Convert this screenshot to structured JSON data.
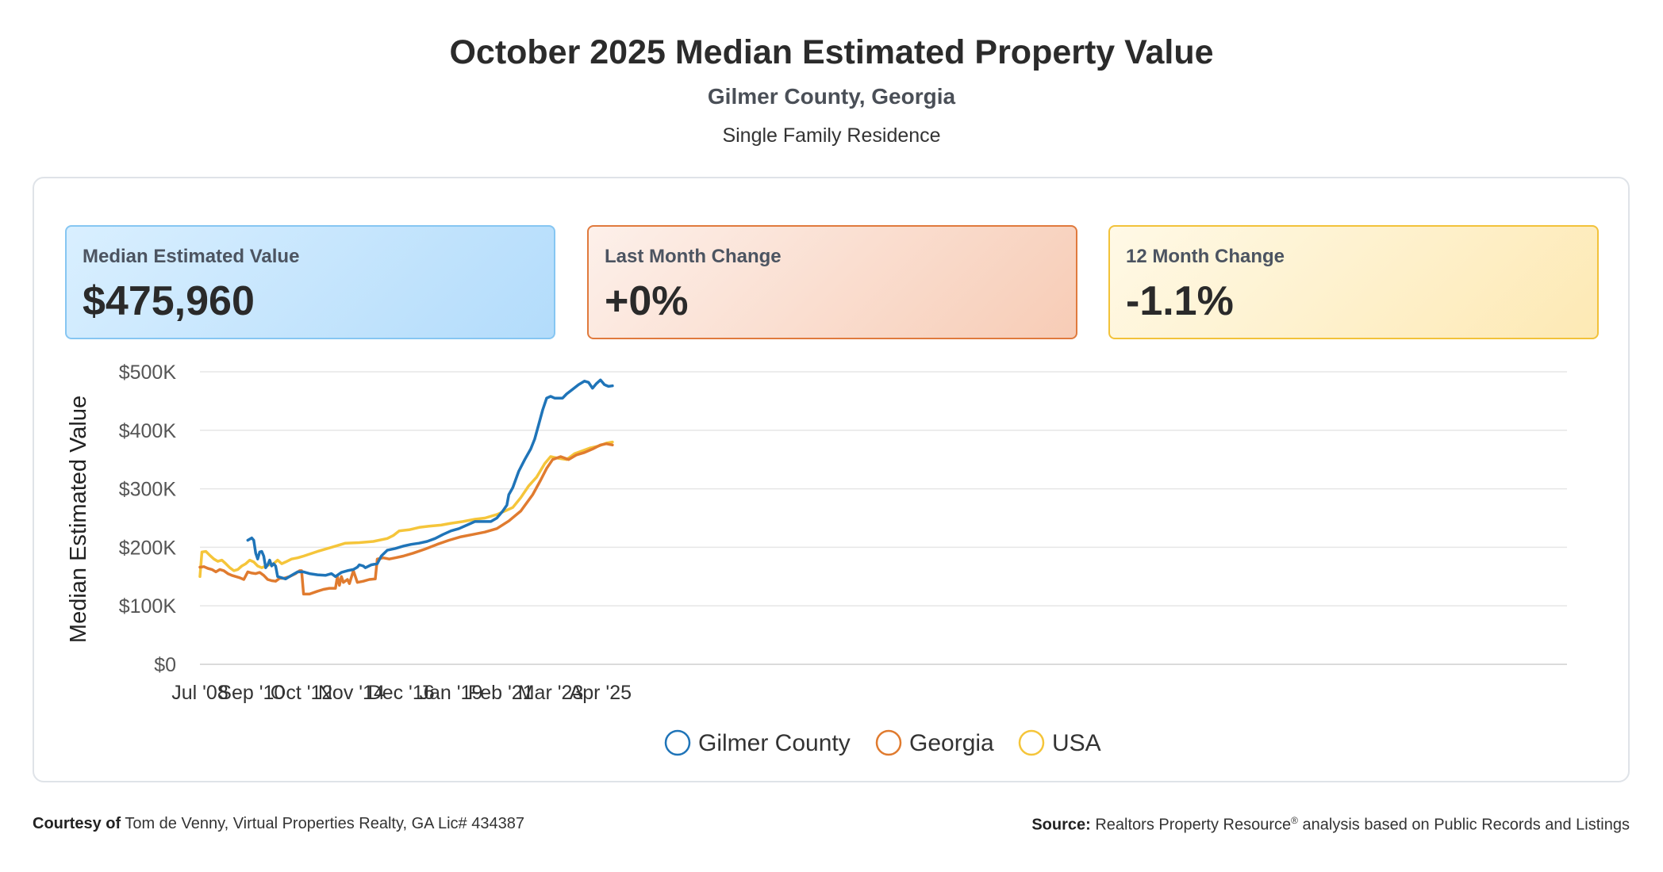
{
  "header": {
    "title": "October 2025 Median Estimated Property Value",
    "subtitle": "Gilmer County, Georgia",
    "property_type": "Single Family Residence"
  },
  "cards": [
    {
      "label": "Median Estimated Value",
      "value": "$475,960"
    },
    {
      "label": "Last Month Change",
      "value": "+0%"
    },
    {
      "label": "12 Month Change",
      "value": "-1.1%"
    }
  ],
  "footer": {
    "courtesy_label": "Courtesy of",
    "courtesy_text": "Tom de Venny, Virtual Properties Realty, GA Lic# 434387",
    "source_label": "Source:",
    "source_text_a": "Realtors Property Resource",
    "source_mark": "®",
    "source_text_b": "analysis based on Public Records and Listings"
  },
  "chart_data": {
    "type": "line",
    "ylabel": "Median Estimated Value",
    "xlabel": "",
    "ylim": [
      0,
      500000
    ],
    "xlim": [
      "2008-07",
      "2025-10"
    ],
    "yticks": [
      0,
      100000,
      200000,
      300000,
      400000,
      500000
    ],
    "ytick_labels": [
      "$0",
      "$100K",
      "$200K",
      "$300K",
      "$400K",
      "$500K"
    ],
    "xticks": [
      "2008-07",
      "2010-09",
      "2012-10",
      "2014-11",
      "2016-12",
      "2019-01",
      "2021-02",
      "2023-03",
      "2025-04"
    ],
    "xtick_labels": [
      "Jul '08",
      "Sep '10",
      "Oct '12",
      "Nov '14",
      "Dec '16",
      "Jan '19",
      "Feb '21",
      "Mar '23",
      "Apr '25"
    ],
    "grid": true,
    "legend": "bottom-center",
    "series": [
      {
        "name": "Gilmer County",
        "color": "#1f74b8",
        "points": [
          [
            "2010-07",
            212000
          ],
          [
            "2010-09",
            216000
          ],
          [
            "2010-10",
            212000
          ],
          [
            "2010-11",
            190000
          ],
          [
            "2010-12",
            180000
          ],
          [
            "2011-01",
            192000
          ],
          [
            "2011-02",
            193000
          ],
          [
            "2011-03",
            185000
          ],
          [
            "2011-04",
            165000
          ],
          [
            "2011-05",
            170000
          ],
          [
            "2011-06",
            178000
          ],
          [
            "2011-07",
            168000
          ],
          [
            "2011-08",
            172000
          ],
          [
            "2011-09",
            168000
          ],
          [
            "2011-10",
            150000
          ],
          [
            "2011-12",
            148000
          ],
          [
            "2012-02",
            146000
          ],
          [
            "2012-05",
            152000
          ],
          [
            "2012-08",
            158000
          ],
          [
            "2012-11",
            158000
          ],
          [
            "2013-02",
            155000
          ],
          [
            "2013-06",
            153000
          ],
          [
            "2013-10",
            152000
          ],
          [
            "2014-01",
            155000
          ],
          [
            "2014-03",
            150000
          ],
          [
            "2014-06",
            157000
          ],
          [
            "2014-09",
            160000
          ],
          [
            "2014-12",
            162000
          ],
          [
            "2015-02",
            166000
          ],
          [
            "2015-03",
            170000
          ],
          [
            "2015-05",
            168000
          ],
          [
            "2015-06",
            165000
          ],
          [
            "2015-09",
            170000
          ],
          [
            "2015-12",
            172000
          ],
          [
            "2016-02",
            185000
          ],
          [
            "2016-05",
            195000
          ],
          [
            "2016-09",
            198000
          ],
          [
            "2017-01",
            202000
          ],
          [
            "2017-05",
            205000
          ],
          [
            "2017-09",
            207000
          ],
          [
            "2018-01",
            210000
          ],
          [
            "2018-05",
            215000
          ],
          [
            "2018-09",
            222000
          ],
          [
            "2019-01",
            228000
          ],
          [
            "2019-05",
            232000
          ],
          [
            "2019-09",
            238000
          ],
          [
            "2020-01",
            244000
          ],
          [
            "2020-05",
            244000
          ],
          [
            "2020-09",
            244000
          ],
          [
            "2020-12",
            250000
          ],
          [
            "2021-03",
            262000
          ],
          [
            "2021-05",
            272000
          ],
          [
            "2021-06",
            290000
          ],
          [
            "2021-08",
            302000
          ],
          [
            "2021-11",
            330000
          ],
          [
            "2022-02",
            350000
          ],
          [
            "2022-05",
            368000
          ],
          [
            "2022-07",
            385000
          ],
          [
            "2022-09",
            410000
          ],
          [
            "2022-11",
            435000
          ],
          [
            "2023-01",
            455000
          ],
          [
            "2023-03",
            458000
          ],
          [
            "2023-05",
            455000
          ],
          [
            "2023-07",
            455000
          ],
          [
            "2023-09",
            455000
          ],
          [
            "2023-11",
            462000
          ],
          [
            "2024-02",
            470000
          ],
          [
            "2024-05",
            478000
          ],
          [
            "2024-08",
            484000
          ],
          [
            "2024-10",
            482000
          ],
          [
            "2024-12",
            472000
          ],
          [
            "2025-02",
            480000
          ],
          [
            "2025-04",
            486000
          ],
          [
            "2025-06",
            478000
          ],
          [
            "2025-08",
            475000
          ],
          [
            "2025-10",
            475960
          ]
        ]
      },
      {
        "name": "Georgia",
        "color": "#e07b2f",
        "points": [
          [
            "2008-07",
            166000
          ],
          [
            "2008-09",
            167000
          ],
          [
            "2008-11",
            164000
          ],
          [
            "2009-01",
            162000
          ],
          [
            "2009-03",
            158000
          ],
          [
            "2009-05",
            162000
          ],
          [
            "2009-07",
            160000
          ],
          [
            "2009-09",
            155000
          ],
          [
            "2009-11",
            152000
          ],
          [
            "2010-01",
            150000
          ],
          [
            "2010-03",
            148000
          ],
          [
            "2010-05",
            145000
          ],
          [
            "2010-07",
            158000
          ],
          [
            "2010-09",
            156000
          ],
          [
            "2010-11",
            155000
          ],
          [
            "2011-01",
            157000
          ],
          [
            "2011-03",
            152000
          ],
          [
            "2011-05",
            145000
          ],
          [
            "2011-07",
            143000
          ],
          [
            "2011-09",
            142000
          ],
          [
            "2011-11",
            147000
          ],
          [
            "2012-01",
            147000
          ],
          [
            "2012-04",
            150000
          ],
          [
            "2012-07",
            155000
          ],
          [
            "2012-09",
            160000
          ],
          [
            "2012-10",
            160000
          ],
          [
            "2012-11",
            120000
          ],
          [
            "2013-02",
            120000
          ],
          [
            "2013-06",
            125000
          ],
          [
            "2013-09",
            128000
          ],
          [
            "2013-12",
            130000
          ],
          [
            "2014-03",
            130000
          ],
          [
            "2014-04",
            150000
          ],
          [
            "2014-05",
            135000
          ],
          [
            "2014-06",
            150000
          ],
          [
            "2014-07",
            140000
          ],
          [
            "2014-09",
            145000
          ],
          [
            "2014-10",
            138000
          ],
          [
            "2014-12",
            160000
          ],
          [
            "2015-02",
            140000
          ],
          [
            "2015-05",
            142000
          ],
          [
            "2015-08",
            145000
          ],
          [
            "2015-11",
            146000
          ],
          [
            "2015-12",
            180000
          ],
          [
            "2016-03",
            182000
          ],
          [
            "2016-06",
            180000
          ],
          [
            "2016-09",
            182000
          ],
          [
            "2017-01",
            185000
          ],
          [
            "2017-06",
            190000
          ],
          [
            "2017-12",
            197000
          ],
          [
            "2018-06",
            205000
          ],
          [
            "2018-12",
            212000
          ],
          [
            "2019-06",
            218000
          ],
          [
            "2019-12",
            222000
          ],
          [
            "2020-06",
            226000
          ],
          [
            "2020-12",
            232000
          ],
          [
            "2021-06",
            245000
          ],
          [
            "2021-12",
            262000
          ],
          [
            "2022-06",
            290000
          ],
          [
            "2022-10",
            315000
          ],
          [
            "2023-01",
            335000
          ],
          [
            "2023-04",
            350000
          ],
          [
            "2023-08",
            355000
          ],
          [
            "2023-12",
            350000
          ],
          [
            "2024-04",
            358000
          ],
          [
            "2024-08",
            362000
          ],
          [
            "2024-12",
            368000
          ],
          [
            "2025-04",
            375000
          ],
          [
            "2025-07",
            377000
          ],
          [
            "2025-10",
            375000
          ]
        ]
      },
      {
        "name": "USA",
        "color": "#f5c53a",
        "points": [
          [
            "2008-07",
            150000
          ],
          [
            "2008-08",
            192000
          ],
          [
            "2008-10",
            193000
          ],
          [
            "2008-12",
            186000
          ],
          [
            "2009-02",
            180000
          ],
          [
            "2009-04",
            176000
          ],
          [
            "2009-06",
            178000
          ],
          [
            "2009-08",
            172000
          ],
          [
            "2009-10",
            165000
          ],
          [
            "2009-12",
            160000
          ],
          [
            "2010-02",
            162000
          ],
          [
            "2010-04",
            168000
          ],
          [
            "2010-06",
            172000
          ],
          [
            "2010-08",
            178000
          ],
          [
            "2010-10",
            175000
          ],
          [
            "2010-12",
            168000
          ],
          [
            "2011-02",
            165000
          ],
          [
            "2011-04",
            168000
          ],
          [
            "2011-06",
            170000
          ],
          [
            "2011-08",
            172000
          ],
          [
            "2011-10",
            178000
          ],
          [
            "2011-12",
            172000
          ],
          [
            "2012-02",
            175000
          ],
          [
            "2012-05",
            180000
          ],
          [
            "2012-08",
            182000
          ],
          [
            "2012-11",
            185000
          ],
          [
            "2013-06",
            193000
          ],
          [
            "2014-01",
            200000
          ],
          [
            "2014-08",
            207000
          ],
          [
            "2015-03",
            208000
          ],
          [
            "2015-10",
            210000
          ],
          [
            "2016-05",
            215000
          ],
          [
            "2016-08",
            220000
          ],
          [
            "2016-11",
            228000
          ],
          [
            "2017-04",
            230000
          ],
          [
            "2017-09",
            234000
          ],
          [
            "2018-02",
            236000
          ],
          [
            "2018-08",
            238000
          ],
          [
            "2019-01",
            241000
          ],
          [
            "2019-07",
            244000
          ],
          [
            "2020-01",
            248000
          ],
          [
            "2020-06",
            250000
          ],
          [
            "2020-12",
            256000
          ],
          [
            "2021-04",
            262000
          ],
          [
            "2021-08",
            268000
          ],
          [
            "2021-12",
            285000
          ],
          [
            "2022-04",
            305000
          ],
          [
            "2022-08",
            320000
          ],
          [
            "2022-12",
            343000
          ],
          [
            "2023-03",
            355000
          ],
          [
            "2023-07",
            352000
          ],
          [
            "2023-11",
            350000
          ],
          [
            "2024-03",
            360000
          ],
          [
            "2024-07",
            365000
          ],
          [
            "2024-11",
            370000
          ],
          [
            "2025-03",
            373000
          ],
          [
            "2025-07",
            378000
          ],
          [
            "2025-10",
            380000
          ]
        ]
      }
    ]
  }
}
